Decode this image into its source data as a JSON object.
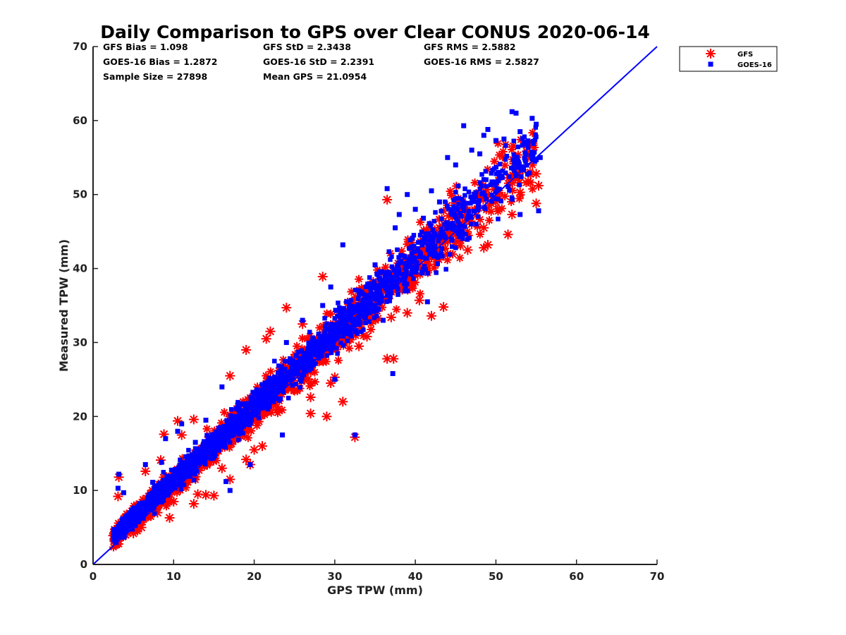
{
  "chart_data": {
    "type": "scatter",
    "title": "Daily Comparison to GPS over Clear CONUS 2020-06-14",
    "xlabel": "GPS TPW (mm)",
    "ylabel": "Measured TPW (mm)",
    "xlim": [
      0,
      70
    ],
    "ylim": [
      0,
      70
    ],
    "xticks": [
      "0",
      "10",
      "20",
      "30",
      "40",
      "50",
      "60",
      "70"
    ],
    "yticks": [
      "0",
      "10",
      "20",
      "30",
      "40",
      "50",
      "60",
      "70"
    ],
    "grid": false,
    "legend_position": "outside top-right",
    "reference_line": {
      "name": "1:1 line",
      "color": "#0000ff",
      "x": [
        0,
        70
      ],
      "y": [
        0,
        70
      ]
    },
    "stats": [
      {
        "text": "GFS Bias = 1.098"
      },
      {
        "text": "GFS StD = 2.3438"
      },
      {
        "text": "GFS RMS = 2.5882"
      },
      {
        "text": "GOES-16 Bias = 1.2872"
      },
      {
        "text": "GOES-16 StD = 2.2391"
      },
      {
        "text": "GOES-16 RMS = 2.5827"
      },
      {
        "text": "Sample Size = 27898"
      },
      {
        "text": "Mean GPS = 21.0954"
      }
    ],
    "series": [
      {
        "name": "GFS",
        "marker": "asterisk",
        "color": "#ff0000",
        "bias": 1.098,
        "std": 2.3438,
        "sample_size": 27898,
        "points": [
          [
            2.5,
            3.9
          ],
          [
            3,
            3.2
          ],
          [
            3.2,
            11.8
          ],
          [
            3.1,
            9.2
          ],
          [
            4,
            6.3
          ],
          [
            5,
            4.2
          ],
          [
            6.5,
            12.6
          ],
          [
            7,
            6.8
          ],
          [
            8.4,
            14.1
          ],
          [
            8.8,
            17.6
          ],
          [
            9.5,
            6.3
          ],
          [
            10.5,
            19.4
          ],
          [
            11,
            17.5
          ],
          [
            12.5,
            19.6
          ],
          [
            12.5,
            8.2
          ],
          [
            14,
            9.4
          ],
          [
            15,
            9.3
          ],
          [
            17,
            25.5
          ],
          [
            17,
            11.5
          ],
          [
            19,
            29
          ],
          [
            19,
            14.2
          ],
          [
            19.5,
            13.5
          ],
          [
            21,
            16
          ],
          [
            21.5,
            30.5
          ],
          [
            22,
            31.5
          ],
          [
            24,
            34.7
          ],
          [
            25,
            23.5
          ],
          [
            26,
            32.5
          ],
          [
            27,
            20.4
          ],
          [
            28.5,
            38.9
          ],
          [
            29,
            20
          ],
          [
            29.5,
            24.5
          ],
          [
            31,
            22
          ],
          [
            32.5,
            17.2
          ],
          [
            33,
            29.5
          ],
          [
            36.5,
            27.8
          ],
          [
            37.3,
            27.8
          ],
          [
            37,
            33.4
          ],
          [
            38,
            40
          ],
          [
            39,
            34
          ],
          [
            40.5,
            35.7
          ],
          [
            42,
            33.6
          ],
          [
            42,
            41.5
          ],
          [
            43.5,
            34.8
          ],
          [
            36.5,
            49.3
          ],
          [
            46.5,
            42.5
          ],
          [
            48.5,
            42.8
          ],
          [
            49,
            43.2
          ],
          [
            48.5,
            45.5
          ],
          [
            51.5,
            44.6
          ],
          [
            52,
            47.3
          ],
          [
            53,
            50.3
          ],
          [
            55,
            48.8
          ],
          [
            55,
            52.8
          ],
          [
            55.3,
            51.2
          ],
          [
            54,
            51.8
          ],
          [
            50,
            49
          ],
          [
            47,
            46
          ],
          [
            45,
            44.5
          ],
          [
            44,
            42
          ],
          [
            43,
            45.5
          ],
          [
            34,
            30.8
          ],
          [
            30,
            25.3
          ],
          [
            27,
            22.6
          ],
          [
            23,
            21
          ],
          [
            20,
            15.5
          ],
          [
            16,
            13
          ],
          [
            13,
            9.5
          ],
          [
            10,
            8.5
          ],
          [
            8,
            7
          ],
          [
            6,
            5
          ],
          [
            4,
            4
          ]
        ]
      },
      {
        "name": "GOES-16",
        "marker": "square",
        "color": "#0000ff",
        "bias": 1.2872,
        "std": 2.2391,
        "sample_size": 27898,
        "points": [
          [
            3.2,
            12.2
          ],
          [
            3.1,
            10.3
          ],
          [
            3.8,
            9.7
          ],
          [
            6.5,
            13.5
          ],
          [
            7.4,
            11.1
          ],
          [
            8.5,
            13.8
          ],
          [
            9,
            17
          ],
          [
            9,
            9.4
          ],
          [
            10.5,
            18
          ],
          [
            11,
            19
          ],
          [
            12.7,
            16.5
          ],
          [
            14,
            19.5
          ],
          [
            16,
            24
          ],
          [
            16.5,
            11.2
          ],
          [
            17,
            10
          ],
          [
            19.5,
            13.5
          ],
          [
            23.5,
            17.5
          ],
          [
            24,
            30
          ],
          [
            26,
            33
          ],
          [
            28.5,
            35
          ],
          [
            29.5,
            37.5
          ],
          [
            31,
            43.2
          ],
          [
            33,
            37
          ],
          [
            35,
            40.5
          ],
          [
            36.5,
            50.8
          ],
          [
            37.5,
            45.5
          ],
          [
            38,
            47.3
          ],
          [
            39,
            50
          ],
          [
            40,
            48
          ],
          [
            41,
            46.8
          ],
          [
            42,
            50.5
          ],
          [
            43,
            49
          ],
          [
            44,
            55
          ],
          [
            45,
            54
          ],
          [
            46,
            59.3
          ],
          [
            47,
            56
          ],
          [
            48,
            55.5
          ],
          [
            48.5,
            58
          ],
          [
            49,
            58.8
          ],
          [
            50,
            57.3
          ],
          [
            51,
            57.5
          ],
          [
            52,
            61.2
          ],
          [
            52.5,
            61
          ],
          [
            53,
            58.5
          ],
          [
            54,
            57
          ],
          [
            54.5,
            60.3
          ],
          [
            55,
            59.5
          ],
          [
            55,
            54.7
          ],
          [
            55.5,
            55
          ],
          [
            53,
            47.3
          ],
          [
            55.3,
            47.8
          ],
          [
            32.5,
            17.5
          ],
          [
            37.2,
            25.8
          ],
          [
            30,
            25
          ],
          [
            32,
            31
          ],
          [
            27,
            28
          ],
          [
            22,
            25
          ],
          [
            18,
            21
          ],
          [
            14,
            16.5
          ],
          [
            11,
            13
          ],
          [
            8,
            9.5
          ],
          [
            6,
            7.5
          ],
          [
            4,
            5.5
          ],
          [
            41.5,
            35.5
          ],
          [
            36,
            33
          ]
        ]
      }
    ]
  }
}
